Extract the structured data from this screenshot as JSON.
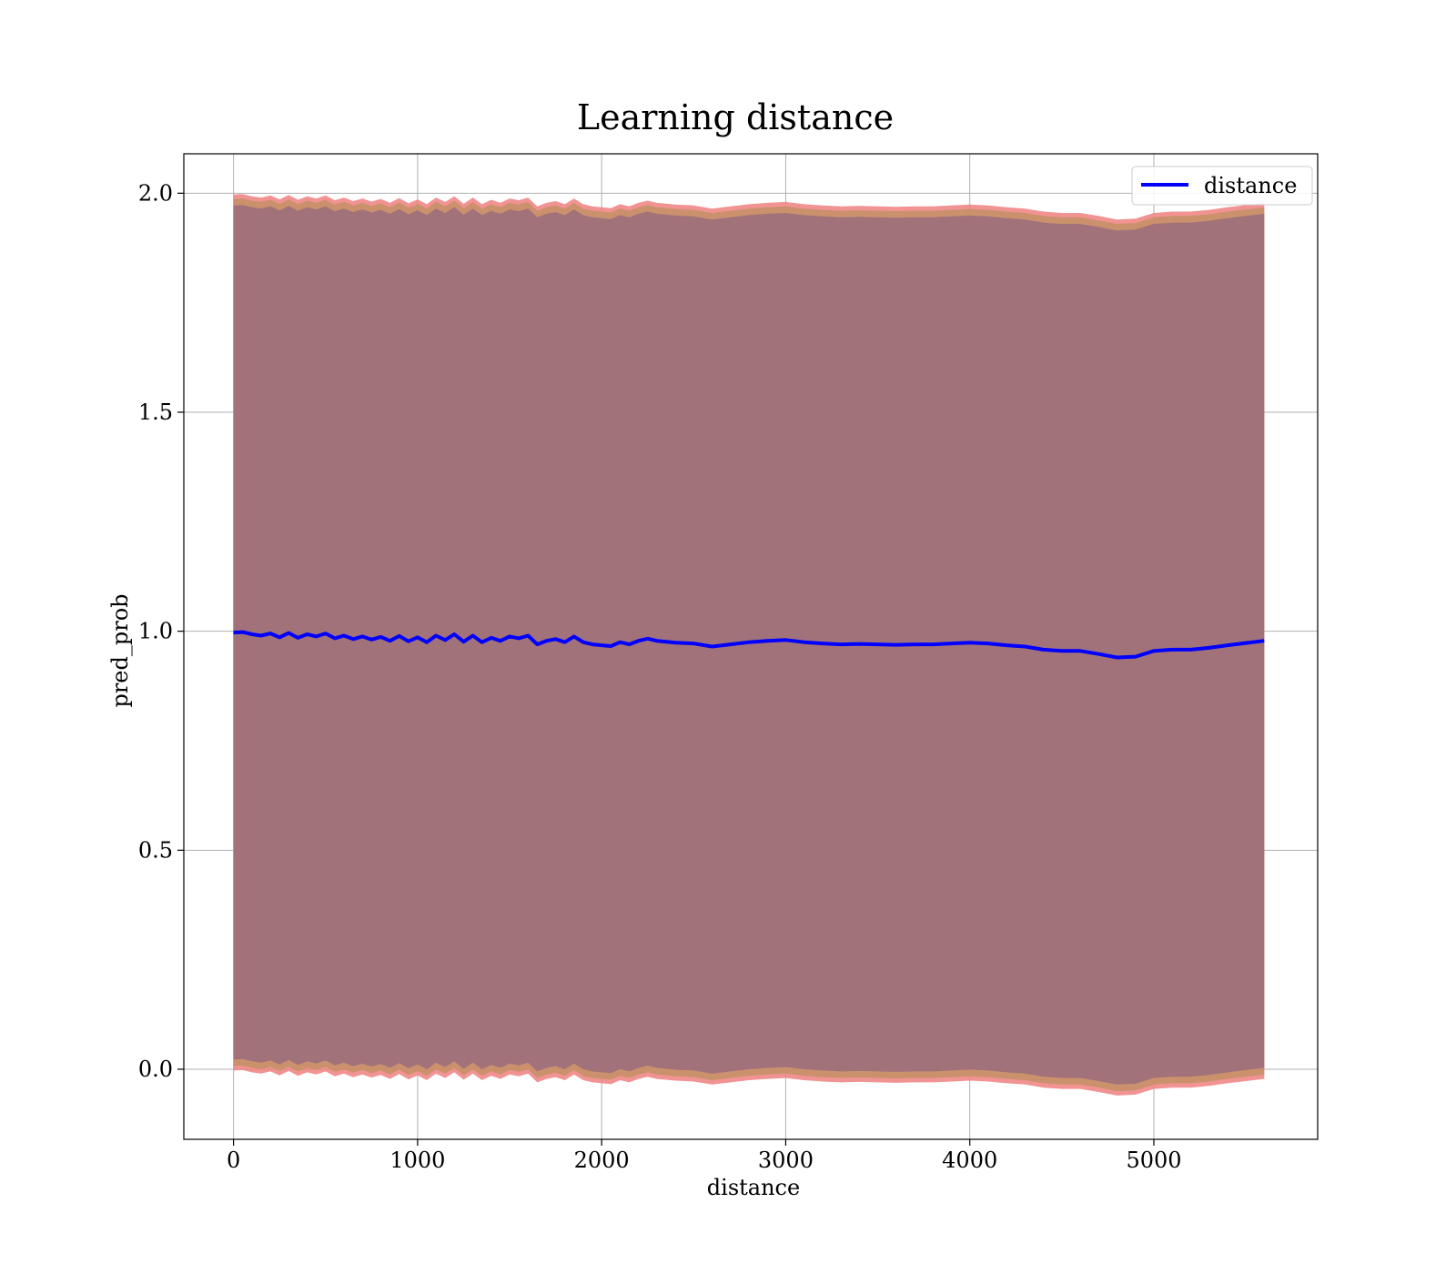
{
  "chart_data": {
    "type": "line",
    "title": "Learning distance",
    "xlabel": "distance",
    "ylabel": "pred_prob",
    "xlim": [
      -270,
      5890
    ],
    "ylim": [
      -0.16,
      2.09
    ],
    "x_ticks": [
      0,
      1000,
      2000,
      3000,
      4000,
      5000
    ],
    "x_tick_labels": [
      "0",
      "1000",
      "2000",
      "3000",
      "4000",
      "5000"
    ],
    "y_ticks": [
      0.0,
      0.5,
      1.0,
      1.5,
      2.0
    ],
    "y_tick_labels": [
      "0.0",
      "0.5",
      "1.0",
      "1.5",
      "2.0"
    ],
    "grid": true,
    "legend_position": "top-right",
    "legend": [
      "distance"
    ],
    "series": [
      {
        "name": "distance",
        "color": "#0000ff",
        "x": [
          0,
          50,
          100,
          150,
          200,
          250,
          300,
          350,
          400,
          450,
          500,
          550,
          600,
          650,
          700,
          750,
          800,
          850,
          900,
          950,
          1000,
          1050,
          1100,
          1150,
          1200,
          1250,
          1300,
          1350,
          1400,
          1450,
          1500,
          1550,
          1600,
          1650,
          1700,
          1750,
          1800,
          1850,
          1900,
          1950,
          2000,
          2050,
          2100,
          2150,
          2200,
          2250,
          2300,
          2400,
          2500,
          2600,
          2700,
          2800,
          2900,
          3000,
          3100,
          3200,
          3300,
          3400,
          3500,
          3600,
          3700,
          3800,
          3900,
          4000,
          4100,
          4200,
          4300,
          4400,
          4500,
          4600,
          4700,
          4800,
          4900,
          5000,
          5100,
          5200,
          5300,
          5400,
          5500,
          5600
        ],
        "y": [
          0.997,
          0.998,
          0.993,
          0.99,
          0.995,
          0.986,
          0.996,
          0.985,
          0.993,
          0.988,
          0.995,
          0.984,
          0.99,
          0.982,
          0.988,
          0.981,
          0.987,
          0.978,
          0.989,
          0.977,
          0.986,
          0.975,
          0.99,
          0.98,
          0.993,
          0.976,
          0.99,
          0.975,
          0.985,
          0.978,
          0.988,
          0.984,
          0.99,
          0.97,
          0.978,
          0.982,
          0.975,
          0.988,
          0.975,
          0.97,
          0.968,
          0.966,
          0.975,
          0.97,
          0.978,
          0.983,
          0.978,
          0.974,
          0.972,
          0.965,
          0.97,
          0.975,
          0.978,
          0.98,
          0.975,
          0.972,
          0.97,
          0.971,
          0.97,
          0.969,
          0.97,
          0.97,
          0.972,
          0.974,
          0.972,
          0.968,
          0.965,
          0.958,
          0.955,
          0.955,
          0.948,
          0.94,
          0.942,
          0.955,
          0.958,
          0.958,
          0.962,
          0.968,
          0.973,
          0.978
        ]
      }
    ],
    "band_outer_color": "#f08080",
    "band_mid_color": "#c8906a",
    "band_inner_color": "#a2727a"
  }
}
